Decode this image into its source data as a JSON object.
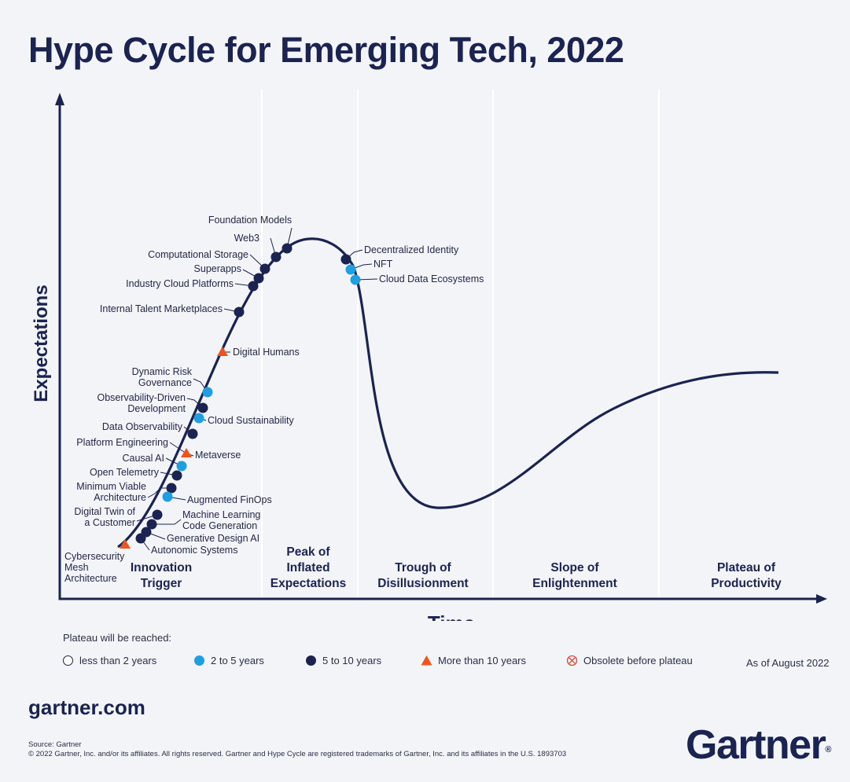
{
  "title": "Hype Cycle for Emerging Tech, 2022",
  "chart_data": {
    "type": "line",
    "title": "Hype Cycle for Emerging Tech, 2022",
    "xlabel": "Time",
    "ylabel": "Expectations",
    "phases": [
      {
        "lines": [
          "Innovation",
          "Trigger"
        ]
      },
      {
        "lines": [
          "Peak of",
          "Inflated",
          "Expectations"
        ]
      },
      {
        "lines": [
          "Trough of",
          "Disillusionment"
        ]
      },
      {
        "lines": [
          "Slope of",
          "Enlightenment"
        ]
      },
      {
        "lines": [
          "Plateau of",
          "Productivity"
        ]
      }
    ],
    "technologies": [
      {
        "lines": [
          "Foundation Models"
        ],
        "plateau": "5-10"
      },
      {
        "lines": [
          "Web3"
        ],
        "plateau": "5-10"
      },
      {
        "lines": [
          "Computational Storage"
        ],
        "plateau": "5-10"
      },
      {
        "lines": [
          "Superapps"
        ],
        "plateau": "5-10"
      },
      {
        "lines": [
          "Industry Cloud Platforms"
        ],
        "plateau": "5-10"
      },
      {
        "lines": [
          "Internal Talent Marketplaces"
        ],
        "plateau": "5-10"
      },
      {
        "lines": [
          "Digital Humans"
        ],
        "plateau": "10+"
      },
      {
        "lines": [
          "Dynamic Risk",
          "Governance"
        ],
        "plateau": "2-5"
      },
      {
        "lines": [
          "Observability-Driven",
          "Development"
        ],
        "plateau": "5-10"
      },
      {
        "lines": [
          "Cloud Sustainability"
        ],
        "plateau": "2-5"
      },
      {
        "lines": [
          "Data Observability"
        ],
        "plateau": "5-10"
      },
      {
        "lines": [
          "Platform Engineering"
        ],
        "plateau": "10+"
      },
      {
        "lines": [
          "Metaverse"
        ],
        "plateau": "10+"
      },
      {
        "lines": [
          "Causal AI"
        ],
        "plateau": "2-5"
      },
      {
        "lines": [
          "Open Telemetry"
        ],
        "plateau": "5-10"
      },
      {
        "lines": [
          "Minimum Viable",
          "Architecture"
        ],
        "plateau": "5-10"
      },
      {
        "lines": [
          "Augmented FinOps"
        ],
        "plateau": "2-5"
      },
      {
        "lines": [
          "Digital Twin of",
          "a Customer"
        ],
        "plateau": "5-10"
      },
      {
        "lines": [
          "Machine Learning",
          "Code Generation"
        ],
        "plateau": "5-10"
      },
      {
        "lines": [
          "Generative Design AI"
        ],
        "plateau": "5-10"
      },
      {
        "lines": [
          "Autonomic Systems"
        ],
        "plateau": "5-10"
      },
      {
        "lines": [
          "Cybersecurity",
          "Mesh",
          "Architecture"
        ],
        "plateau": "10+"
      },
      {
        "lines": [
          "Decentralized Identity"
        ],
        "plateau": "5-10"
      },
      {
        "lines": [
          "NFT"
        ],
        "plateau": "2-5"
      },
      {
        "lines": [
          "Cloud Data Ecosystems"
        ],
        "plateau": "2-5"
      }
    ]
  },
  "legend": {
    "title": "Plateau will be reached:",
    "items": [
      {
        "label": "less than 2 years",
        "marker": "open-circle"
      },
      {
        "label": "2 to 5 years",
        "marker": "light-blue-circle"
      },
      {
        "label": "5 to 10 years",
        "marker": "navy-circle"
      },
      {
        "label": "More than 10 years",
        "marker": "orange-triangle"
      },
      {
        "label": "Obsolete before plateau",
        "marker": "crossed-circle"
      }
    ],
    "as_of": "As of August 2022"
  },
  "footer": {
    "site": "gartner.com",
    "source": "Source: Gartner",
    "copyright": "© 2022 Gartner, Inc. and/or its affiliates. All rights reserved. Gartner and Hype Cycle are registered trademarks of Gartner, Inc. and its affiliates in the U.S. 1893703",
    "logo": "Gartner",
    "logo_mark": "®"
  },
  "colors": {
    "navy": "#1b2350",
    "light_blue": "#1f9fe0",
    "orange": "#f0541e",
    "obsolete_red": "#e2463b",
    "background": "#f3f4f8",
    "separator": "#ffffff"
  }
}
